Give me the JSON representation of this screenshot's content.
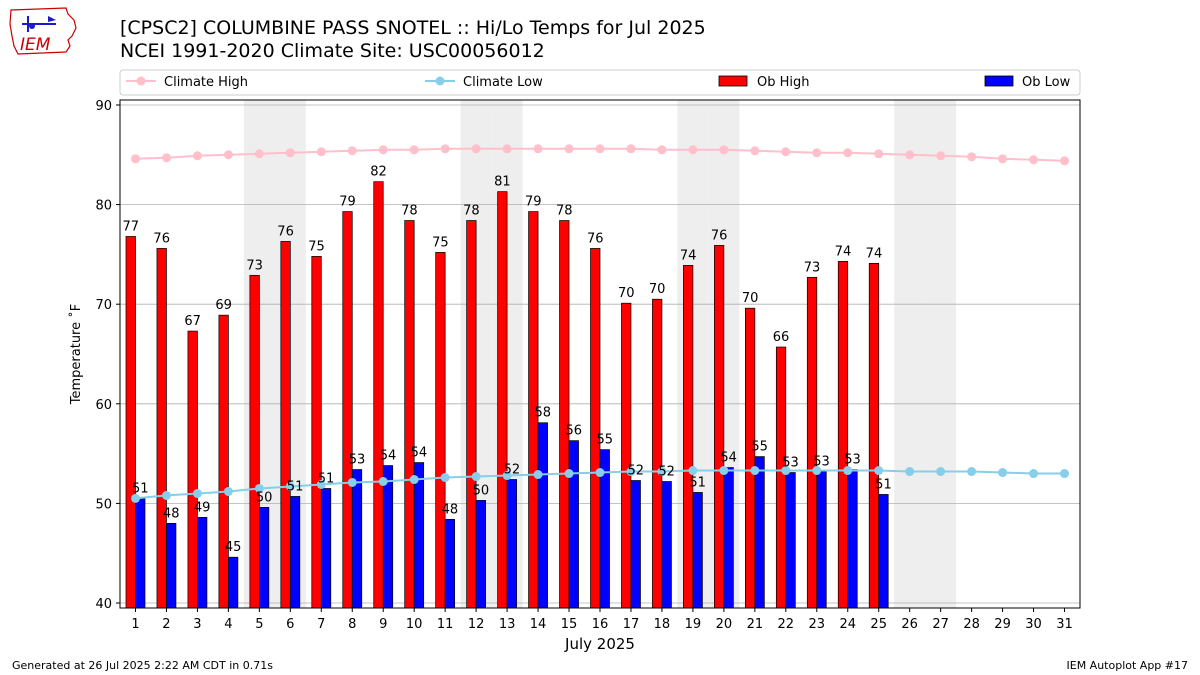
{
  "header": {
    "title_line1": "[CPSC2] COLUMBINE PASS SNOTEL :: Hi/Lo Temps for Jul 2025",
    "title_line2": "NCEI 1991-2020 Climate Site: USC00056012",
    "logo_text": "IEM"
  },
  "footer": {
    "generated": "Generated at 26 Jul 2025 2:22 AM CDT in 0.71s",
    "app": "IEM Autoplot App #17"
  },
  "colors": {
    "ob_high": "#ff0000",
    "ob_low": "#0000ff",
    "climate_high": "#ffc0cb",
    "climate_low": "#87ceeb",
    "weekend_shade": "#eeeeee",
    "grid": "#b0b0b0"
  },
  "chart_data": {
    "type": "bar",
    "title": "[CPSC2] COLUMBINE PASS SNOTEL :: Hi/Lo Temps for Jul 2025",
    "subtitle": "NCEI 1991-2020 Climate Site: USC00056012",
    "xlabel": "July 2025",
    "ylabel": "Temperature ˚F",
    "ylim": [
      39.5,
      90.5
    ],
    "yticks": [
      40,
      50,
      60,
      70,
      80,
      90
    ],
    "grid": "horizontal",
    "legend": "top",
    "categories": [
      "1",
      "2",
      "3",
      "4",
      "5",
      "6",
      "7",
      "8",
      "9",
      "10",
      "11",
      "12",
      "13",
      "14",
      "15",
      "16",
      "17",
      "18",
      "19",
      "20",
      "21",
      "22",
      "23",
      "24",
      "25",
      "26",
      "27",
      "28",
      "29",
      "30",
      "31"
    ],
    "shaded_days": [
      5,
      6,
      12,
      13,
      19,
      20,
      26,
      27
    ],
    "series": [
      {
        "name": "Ob High",
        "kind": "bar",
        "values": [
          77,
          76,
          67,
          69,
          73,
          76,
          75,
          79,
          82,
          78,
          75,
          78,
          81,
          79,
          78,
          76,
          70,
          70,
          74,
          76,
          70,
          66,
          73,
          74,
          74,
          null,
          null,
          null,
          null,
          null,
          null
        ],
        "exact": [
          76.8,
          75.6,
          67.3,
          68.9,
          72.9,
          76.3,
          74.8,
          79.3,
          82.3,
          78.4,
          75.2,
          78.4,
          81.3,
          79.3,
          78.4,
          75.6,
          70.1,
          70.5,
          73.9,
          75.9,
          69.6,
          65.7,
          72.7,
          74.3,
          74.1,
          null,
          null,
          null,
          null,
          null,
          null
        ]
      },
      {
        "name": "Ob Low",
        "kind": "bar",
        "values": [
          51,
          48,
          49,
          45,
          50,
          51,
          51,
          53,
          54,
          54,
          48,
          50,
          52,
          58,
          56,
          55,
          52,
          52,
          51,
          54,
          55,
          53,
          53,
          53,
          51,
          null,
          null,
          null,
          null,
          null,
          null
        ],
        "exact": [
          50.5,
          48.0,
          48.6,
          44.6,
          49.6,
          50.7,
          51.5,
          53.4,
          53.8,
          54.1,
          48.4,
          50.3,
          52.4,
          58.1,
          56.3,
          55.4,
          52.3,
          52.2,
          51.1,
          53.6,
          54.7,
          53.1,
          53.2,
          53.4,
          50.9,
          null,
          null,
          null,
          null,
          null,
          null
        ]
      },
      {
        "name": "Climate High",
        "kind": "line",
        "values": [
          84.6,
          84.7,
          84.9,
          85.0,
          85.1,
          85.2,
          85.3,
          85.4,
          85.5,
          85.5,
          85.6,
          85.6,
          85.6,
          85.6,
          85.6,
          85.6,
          85.6,
          85.5,
          85.5,
          85.5,
          85.4,
          85.3,
          85.2,
          85.2,
          85.1,
          85.0,
          84.9,
          84.8,
          84.6,
          84.5,
          84.4
        ]
      },
      {
        "name": "Climate Low",
        "kind": "line",
        "values": [
          50.5,
          50.8,
          51.0,
          51.2,
          51.5,
          51.7,
          51.9,
          52.1,
          52.2,
          52.4,
          52.6,
          52.7,
          52.8,
          52.9,
          53.0,
          53.1,
          53.2,
          53.2,
          53.3,
          53.3,
          53.3,
          53.3,
          53.3,
          53.3,
          53.3,
          53.2,
          53.2,
          53.2,
          53.1,
          53.0,
          53.0
        ]
      }
    ]
  }
}
